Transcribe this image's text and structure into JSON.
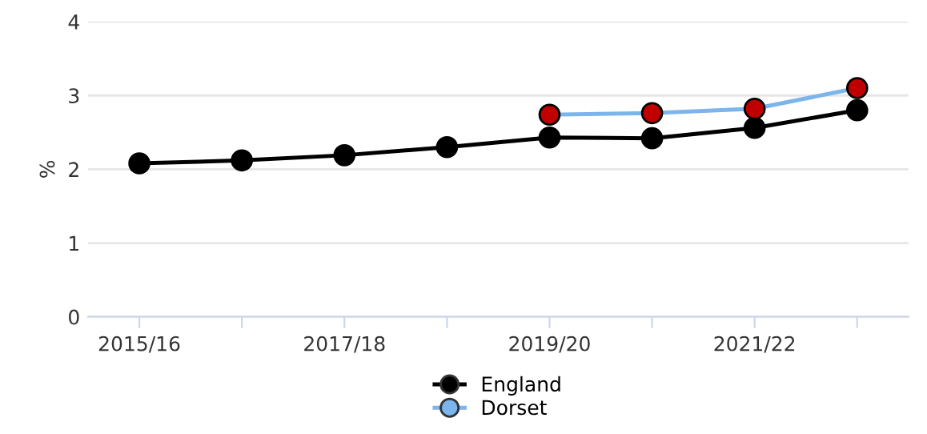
{
  "chart_data": {
    "type": "line",
    "ylabel": "%",
    "categories": [
      "2015/16",
      null,
      "2017/18",
      null,
      "2019/20",
      null,
      "2021/22",
      null
    ],
    "series": [
      {
        "name": "England",
        "color": "#000000",
        "values": [
          2.08,
          2.12,
          2.19,
          2.3,
          2.43,
          2.42,
          2.56,
          2.8
        ]
      },
      {
        "name": "Dorset",
        "color": "#7cb5ec",
        "colors": [
          null,
          null,
          null,
          null,
          "#c00000",
          "#c00000",
          "#c00000",
          "#c00000"
        ],
        "values": [
          null,
          null,
          null,
          null,
          2.74,
          2.76,
          2.82,
          3.1
        ]
      }
    ],
    "ylim": [
      0,
      4
    ],
    "yticks": [
      0,
      1,
      2,
      3,
      4
    ],
    "grid": "y",
    "legend": "bottom",
    "marker": "circle",
    "line_style": "solid"
  }
}
